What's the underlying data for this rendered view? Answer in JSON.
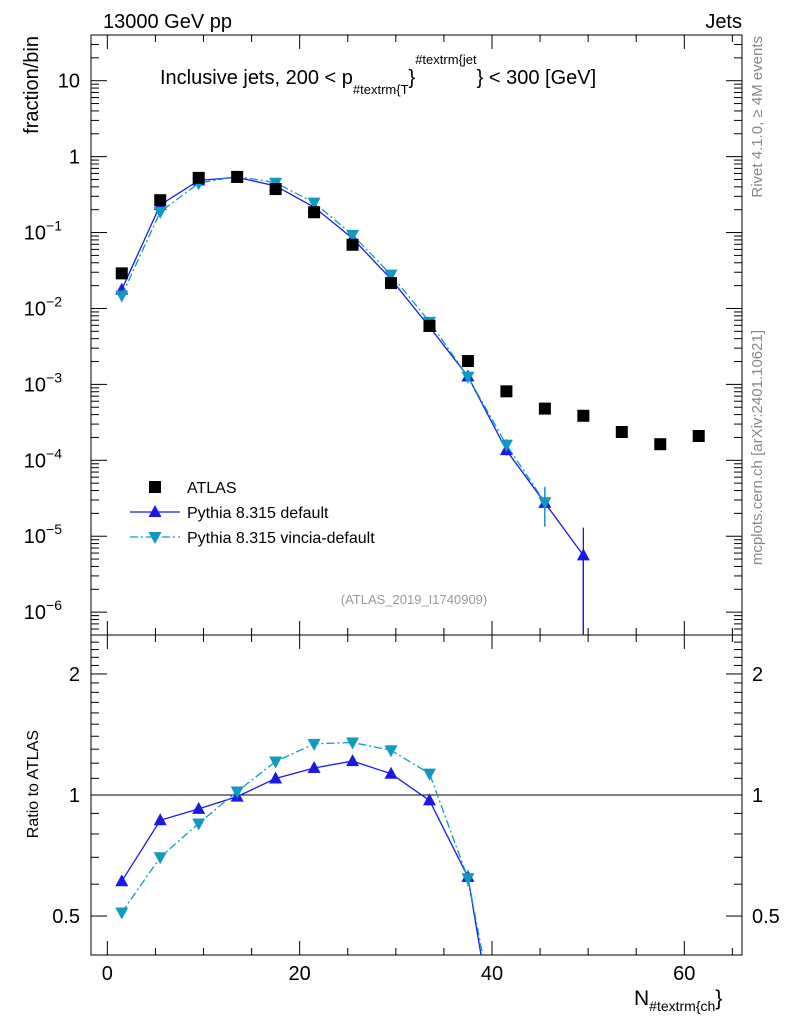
{
  "header": {
    "left": "13000 GeV pp",
    "right": "Jets"
  },
  "side_text": {
    "rivet": "Rivet 4.1.0, ≥ 4M events",
    "mcplots": "mcplots.cern.ch [arXiv:2401.10621]"
  },
  "watermark": "(ATLAS_2019_I1740909)",
  "chart_data": {
    "type": "scatter",
    "title": {
      "main": "Inclusive jets, 200 < p",
      "sub": "#textrm{T",
      "brace1": "}",
      "sup": "#textrm{jet",
      "tail": "} < 300 [GeV]"
    },
    "xlabel": {
      "main": "N",
      "sub": "#textrm{ch",
      "brace": "}"
    },
    "ylabel": "fraction/bin",
    "ratio_ylabel": "Ratio to ATLAS",
    "xlim": [
      -1.7,
      66
    ],
    "ylim": [
      5e-07,
      40
    ],
    "ratio_ylim": [
      0.4,
      2.5
    ],
    "yscale": "log",
    "x_ticks": [
      "0",
      "20",
      "40",
      "60"
    ],
    "x_tick_values": [
      0,
      20,
      40,
      60
    ],
    "ratio_ticks": [
      "0.5",
      "1",
      "2"
    ],
    "ratio_tick_values": [
      0.5,
      1,
      2
    ],
    "legend": {
      "placement": "lower-left",
      "entries": [
        "ATLAS",
        "Pythia 8.315 default",
        "Pythia 8.315 vincia-default"
      ]
    },
    "colors": {
      "data": "#000000",
      "default": "#1a1ae6",
      "vincia": "#0f9ac0"
    },
    "series": [
      {
        "name": "ATLAS",
        "x": [
          1.5,
          5.5,
          9.5,
          13.5,
          17.5,
          21.5,
          25.5,
          29.5,
          33.5,
          37.5,
          41.5,
          45.5,
          49.5,
          53.5,
          57.5,
          61.5
        ],
        "y": [
          0.029,
          0.267,
          0.525,
          0.54,
          0.374,
          0.185,
          0.069,
          0.0216,
          0.0059,
          0.00203,
          0.00081,
          0.00048,
          0.000386,
          0.000236,
          0.000163,
          0.000209
        ]
      },
      {
        "name": "Pythia 8.315 default",
        "x": [
          1.5,
          5.5,
          9.5,
          13.5,
          17.5,
          21.5,
          25.5,
          29.5,
          33.5,
          37.5,
          41.5,
          45.5,
          49.5
        ],
        "y": [
          0.0177,
          0.231,
          0.485,
          0.535,
          0.411,
          0.216,
          0.0838,
          0.0244,
          0.00572,
          0.00127,
          0.000136,
          2.75e-05,
          5.6e-06
        ],
        "err_hi": [
          0,
          0,
          0,
          0,
          0,
          0,
          0,
          0,
          0,
          8e-05,
          2e-05,
          1.6e-05,
          7.4e-06
        ],
        "err_lo": [
          0,
          0,
          0,
          0,
          0,
          0,
          0,
          0,
          0,
          8e-05,
          2e-05,
          1.4e-05,
          5.6e-06
        ]
      },
      {
        "name": "Pythia 8.315 vincia-default",
        "x": [
          1.5,
          5.5,
          9.5,
          13.5,
          17.5,
          21.5,
          25.5,
          29.5,
          33.5,
          37.5,
          41.5,
          45.5
        ],
        "y": [
          0.0148,
          0.187,
          0.446,
          0.551,
          0.453,
          0.248,
          0.0932,
          0.0279,
          0.00667,
          0.00126,
          0.00016,
          2.8e-05
        ],
        "err_hi": [
          0,
          0,
          0,
          0,
          0,
          0,
          0,
          0,
          0,
          0.0001,
          3e-05,
          1.7e-05
        ],
        "err_lo": [
          0,
          0,
          0,
          0,
          0,
          0,
          0,
          0,
          0,
          0.0001,
          3e-05,
          1.4e-05
        ]
      }
    ]
  }
}
